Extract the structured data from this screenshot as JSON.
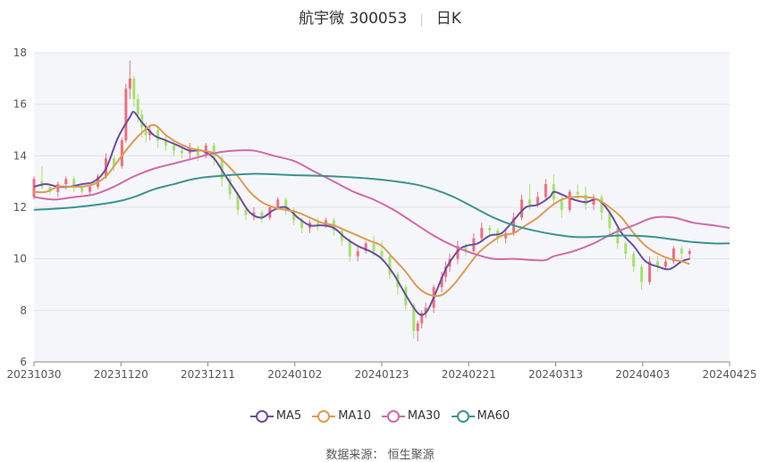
{
  "header": {
    "name": "航宇微 300053",
    "period": "日K"
  },
  "source": {
    "label": "数据来源：",
    "value": "恒生聚源"
  },
  "colors": {
    "up": "#ee6f7c",
    "down": "#a5e26a",
    "ma5": "#6a4e9e",
    "ma10": "#dc9b56",
    "ma30": "#d368ac",
    "ma60": "#3b9492"
  },
  "chart_data": {
    "type": "candlestick",
    "title": "航宇微 300053 日K",
    "ylim": [
      6,
      18
    ],
    "yticks": [
      6,
      8,
      10,
      12,
      14,
      16,
      18
    ],
    "x_tick_labels": [
      "20231030",
      "20231120",
      "20231211",
      "20240102",
      "20240123",
      "20240221",
      "20240313",
      "20240403",
      "20240425"
    ],
    "grid": true,
    "legend_position": "bottom",
    "series": [
      {
        "name": "MA5",
        "color": "#6a4e9e",
        "points": [
          [
            0,
            12.8
          ],
          [
            3,
            12.9
          ],
          [
            6,
            12.8
          ],
          [
            9,
            12.8
          ],
          [
            12,
            12.9
          ],
          [
            15,
            13.0
          ],
          [
            18,
            13.5
          ],
          [
            21,
            14.7
          ],
          [
            24,
            15.5
          ],
          [
            25,
            15.7
          ],
          [
            27,
            15.3
          ],
          [
            30,
            14.8
          ],
          [
            33,
            14.6
          ],
          [
            36,
            14.4
          ],
          [
            39,
            14.2
          ],
          [
            42,
            14.2
          ],
          [
            45,
            13.9
          ],
          [
            48,
            13.2
          ],
          [
            51,
            12.5
          ],
          [
            54,
            11.8
          ],
          [
            57,
            11.6
          ],
          [
            60,
            11.9
          ],
          [
            63,
            12.0
          ],
          [
            66,
            11.6
          ],
          [
            69,
            11.3
          ],
          [
            72,
            11.3
          ],
          [
            75,
            11.2
          ],
          [
            78,
            10.8
          ],
          [
            81,
            10.5
          ],
          [
            84,
            10.3
          ],
          [
            87,
            10.0
          ],
          [
            90,
            9.4
          ],
          [
            93,
            8.6
          ],
          [
            96,
            7.9
          ],
          [
            98,
            7.9
          ],
          [
            100,
            8.5
          ],
          [
            103,
            9.6
          ],
          [
            106,
            10.3
          ],
          [
            108,
            10.5
          ],
          [
            111,
            10.6
          ],
          [
            114,
            10.9
          ],
          [
            117,
            11.0
          ],
          [
            120,
            11.5
          ],
          [
            123,
            12.0
          ],
          [
            126,
            12.1
          ],
          [
            129,
            12.4
          ],
          [
            130,
            12.6
          ],
          [
            132,
            12.5
          ],
          [
            135,
            12.3
          ],
          [
            138,
            12.2
          ],
          [
            141,
            12.3
          ],
          [
            144,
            11.8
          ],
          [
            147,
            11.0
          ],
          [
            150,
            10.5
          ],
          [
            153,
            9.9
          ],
          [
            156,
            9.7
          ],
          [
            159,
            9.6
          ],
          [
            162,
            9.9
          ],
          [
            164,
            10.0
          ]
        ]
      },
      {
        "name": "MA10",
        "color": "#dc9b56",
        "points": [
          [
            0,
            12.6
          ],
          [
            3,
            12.6
          ],
          [
            6,
            12.8
          ],
          [
            9,
            12.8
          ],
          [
            12,
            12.8
          ],
          [
            15,
            12.9
          ],
          [
            18,
            13.2
          ],
          [
            21,
            13.8
          ],
          [
            24,
            14.4
          ],
          [
            27,
            14.9
          ],
          [
            30,
            15.2
          ],
          [
            33,
            14.8
          ],
          [
            36,
            14.5
          ],
          [
            39,
            14.3
          ],
          [
            42,
            14.2
          ],
          [
            45,
            14.1
          ],
          [
            48,
            13.7
          ],
          [
            51,
            13.2
          ],
          [
            54,
            12.6
          ],
          [
            57,
            12.2
          ],
          [
            60,
            12.0
          ],
          [
            63,
            11.9
          ],
          [
            66,
            11.8
          ],
          [
            69,
            11.6
          ],
          [
            72,
            11.4
          ],
          [
            75,
            11.3
          ],
          [
            78,
            11.1
          ],
          [
            81,
            10.9
          ],
          [
            84,
            10.7
          ],
          [
            87,
            10.5
          ],
          [
            90,
            10.0
          ],
          [
            93,
            9.5
          ],
          [
            96,
            8.9
          ],
          [
            99,
            8.6
          ],
          [
            102,
            8.6
          ],
          [
            105,
            9.0
          ],
          [
            108,
            9.6
          ],
          [
            111,
            10.2
          ],
          [
            114,
            10.6
          ],
          [
            117,
            10.9
          ],
          [
            120,
            11.0
          ],
          [
            123,
            11.3
          ],
          [
            126,
            11.6
          ],
          [
            129,
            12.0
          ],
          [
            132,
            12.3
          ],
          [
            135,
            12.4
          ],
          [
            138,
            12.4
          ],
          [
            141,
            12.3
          ],
          [
            144,
            12.0
          ],
          [
            147,
            11.6
          ],
          [
            150,
            11.0
          ],
          [
            153,
            10.5
          ],
          [
            156,
            10.2
          ],
          [
            159,
            10.0
          ],
          [
            162,
            9.9
          ],
          [
            164,
            9.8
          ]
        ]
      },
      {
        "name": "MA30",
        "color": "#d368ac",
        "points": [
          [
            0,
            12.4
          ],
          [
            5,
            12.3
          ],
          [
            10,
            12.4
          ],
          [
            15,
            12.5
          ],
          [
            20,
            12.8
          ],
          [
            25,
            13.2
          ],
          [
            30,
            13.5
          ],
          [
            35,
            13.7
          ],
          [
            40,
            13.9
          ],
          [
            45,
            14.1
          ],
          [
            50,
            14.2
          ],
          [
            55,
            14.2
          ],
          [
            60,
            14.0
          ],
          [
            65,
            13.8
          ],
          [
            70,
            13.4
          ],
          [
            75,
            13.0
          ],
          [
            80,
            12.6
          ],
          [
            85,
            12.3
          ],
          [
            90,
            11.9
          ],
          [
            95,
            11.4
          ],
          [
            100,
            10.9
          ],
          [
            105,
            10.5
          ],
          [
            110,
            10.2
          ],
          [
            115,
            10.0
          ],
          [
            120,
            10.0
          ],
          [
            125,
            9.95
          ],
          [
            128,
            9.95
          ],
          [
            130,
            10.1
          ],
          [
            135,
            10.3
          ],
          [
            140,
            10.6
          ],
          [
            145,
            11.0
          ],
          [
            150,
            11.3
          ],
          [
            155,
            11.6
          ],
          [
            160,
            11.6
          ],
          [
            165,
            11.4
          ],
          [
            170,
            11.3
          ],
          [
            174,
            11.2
          ]
        ]
      },
      {
        "name": "MA60",
        "color": "#3b9492",
        "points": [
          [
            0,
            11.9
          ],
          [
            10,
            12.0
          ],
          [
            20,
            12.2
          ],
          [
            25,
            12.4
          ],
          [
            30,
            12.7
          ],
          [
            35,
            12.9
          ],
          [
            40,
            13.1
          ],
          [
            45,
            13.2
          ],
          [
            55,
            13.3
          ],
          [
            65,
            13.25
          ],
          [
            75,
            13.2
          ],
          [
            85,
            13.1
          ],
          [
            95,
            12.9
          ],
          [
            100,
            12.7
          ],
          [
            105,
            12.4
          ],
          [
            110,
            12.0
          ],
          [
            115,
            11.6
          ],
          [
            120,
            11.3
          ],
          [
            125,
            11.1
          ],
          [
            130,
            10.95
          ],
          [
            135,
            10.85
          ],
          [
            140,
            10.85
          ],
          [
            145,
            10.9
          ],
          [
            150,
            10.9
          ],
          [
            155,
            10.85
          ],
          [
            160,
            10.75
          ],
          [
            165,
            10.65
          ],
          [
            170,
            10.6
          ],
          [
            174,
            10.6
          ]
        ]
      }
    ],
    "candles": [
      [
        0,
        12.4,
        13.1,
        12.3,
        13.2
      ],
      [
        2,
        13.0,
        12.8,
        12.7,
        13.6
      ],
      [
        4,
        12.8,
        12.6,
        12.5,
        12.9
      ],
      [
        6,
        12.6,
        12.9,
        12.4,
        13.0
      ],
      [
        8,
        12.9,
        13.1,
        12.7,
        13.2
      ],
      [
        10,
        13.1,
        12.8,
        12.6,
        13.2
      ],
      [
        12,
        12.8,
        12.6,
        12.5,
        12.9
      ],
      [
        14,
        12.6,
        12.8,
        12.5,
        12.9
      ],
      [
        16,
        12.8,
        13.2,
        12.7,
        13.3
      ],
      [
        18,
        13.2,
        13.9,
        13.1,
        14.1
      ],
      [
        20,
        13.9,
        13.6,
        13.4,
        14.0
      ],
      [
        22,
        13.6,
        14.6,
        13.5,
        14.7
      ],
      [
        23,
        14.6,
        16.6,
        14.5,
        16.8
      ],
      [
        24,
        16.6,
        17.0,
        16.2,
        17.7
      ],
      [
        25,
        17.0,
        16.2,
        15.9,
        17.1
      ],
      [
        26,
        16.2,
        15.6,
        15.3,
        16.4
      ],
      [
        27,
        15.6,
        15.1,
        14.7,
        15.8
      ],
      [
        28,
        15.1,
        14.8,
        14.5,
        15.3
      ],
      [
        29,
        14.8,
        15.0,
        14.6,
        15.2
      ],
      [
        31,
        15.0,
        14.6,
        14.3,
        15.1
      ],
      [
        33,
        14.6,
        14.4,
        14.2,
        14.8
      ],
      [
        35,
        14.4,
        14.2,
        14.0,
        14.6
      ],
      [
        37,
        14.2,
        14.1,
        13.9,
        14.4
      ],
      [
        39,
        14.1,
        14.3,
        13.9,
        14.5
      ],
      [
        41,
        14.3,
        14.0,
        13.8,
        14.4
      ],
      [
        43,
        14.0,
        14.4,
        13.9,
        14.5
      ],
      [
        45,
        14.4,
        13.9,
        13.6,
        14.5
      ],
      [
        47,
        13.9,
        13.1,
        12.8,
        14.0
      ],
      [
        49,
        13.1,
        12.5,
        12.3,
        13.2
      ],
      [
        51,
        12.5,
        11.9,
        11.7,
        12.6
      ],
      [
        53,
        11.9,
        11.7,
        11.5,
        12.0
      ],
      [
        55,
        11.7,
        11.8,
        11.5,
        12.0
      ],
      [
        57,
        11.8,
        11.6,
        11.4,
        11.9
      ],
      [
        59,
        11.6,
        12.0,
        11.5,
        12.1
      ],
      [
        61,
        12.0,
        12.3,
        11.9,
        12.4
      ],
      [
        63,
        12.3,
        11.9,
        11.7,
        12.4
      ],
      [
        65,
        11.9,
        11.5,
        11.3,
        12.0
      ],
      [
        67,
        11.5,
        11.2,
        11.0,
        11.6
      ],
      [
        69,
        11.2,
        11.4,
        11.0,
        11.5
      ],
      [
        71,
        11.4,
        11.3,
        11.1,
        11.6
      ],
      [
        73,
        11.3,
        11.5,
        11.2,
        11.6
      ],
      [
        75,
        11.5,
        11.1,
        10.9,
        11.6
      ],
      [
        77,
        11.1,
        10.7,
        10.5,
        11.2
      ],
      [
        79,
        10.7,
        10.1,
        9.9,
        10.8
      ],
      [
        81,
        10.1,
        10.3,
        9.9,
        10.5
      ],
      [
        83,
        10.3,
        10.6,
        10.2,
        10.7
      ],
      [
        85,
        10.6,
        10.3,
        10.1,
        10.9
      ],
      [
        87,
        10.3,
        10.1,
        9.9,
        10.7
      ],
      [
        89,
        10.1,
        9.4,
        9.2,
        10.2
      ],
      [
        91,
        9.4,
        8.9,
        8.6,
        9.5
      ],
      [
        93,
        8.9,
        8.2,
        8.0,
        9.0
      ],
      [
        95,
        8.2,
        7.2,
        6.9,
        8.3
      ],
      [
        96,
        7.2,
        7.5,
        6.8,
        7.6
      ],
      [
        97,
        7.5,
        7.9,
        7.3,
        8.0
      ],
      [
        98,
        7.9,
        8.1,
        7.7,
        8.3
      ],
      [
        100,
        8.1,
        8.9,
        7.9,
        9.0
      ],
      [
        102,
        8.9,
        9.3,
        8.7,
        9.5
      ],
      [
        103,
        9.3,
        9.7,
        9.1,
        9.9
      ],
      [
        104,
        9.7,
        10.0,
        9.5,
        10.2
      ],
      [
        106,
        10.0,
        10.5,
        9.8,
        10.7
      ],
      [
        108,
        10.5,
        10.3,
        10.1,
        10.6
      ],
      [
        110,
        10.3,
        10.8,
        10.2,
        11.0
      ],
      [
        112,
        10.8,
        11.2,
        10.7,
        11.4
      ],
      [
        114,
        11.2,
        11.1,
        10.9,
        11.3
      ],
      [
        116,
        11.1,
        10.8,
        10.6,
        11.2
      ],
      [
        118,
        10.8,
        11.0,
        10.6,
        11.1
      ],
      [
        120,
        11.0,
        11.6,
        10.9,
        11.8
      ],
      [
        122,
        11.6,
        12.3,
        11.5,
        12.5
      ],
      [
        124,
        12.3,
        12.1,
        11.9,
        12.9
      ],
      [
        126,
        12.1,
        12.4,
        12.0,
        12.6
      ],
      [
        128,
        12.4,
        12.9,
        12.3,
        13.1
      ],
      [
        130,
        12.9,
        12.3,
        12.1,
        13.3
      ],
      [
        132,
        12.3,
        11.9,
        11.6,
        12.5
      ],
      [
        134,
        11.9,
        12.6,
        11.8,
        12.7
      ],
      [
        136,
        12.6,
        12.5,
        12.3,
        12.9
      ],
      [
        138,
        12.5,
        12.1,
        11.9,
        12.8
      ],
      [
        140,
        12.1,
        12.4,
        11.9,
        12.5
      ],
      [
        142,
        12.4,
        11.8,
        11.5,
        12.5
      ],
      [
        144,
        11.8,
        11.2,
        10.9,
        11.9
      ],
      [
        146,
        11.2,
        10.6,
        10.4,
        11.3
      ],
      [
        148,
        10.6,
        10.2,
        10.0,
        10.7
      ],
      [
        150,
        10.2,
        9.7,
        9.5,
        10.3
      ],
      [
        152,
        9.7,
        9.1,
        8.8,
        9.8
      ],
      [
        154,
        9.1,
        9.9,
        9.0,
        10.1
      ],
      [
        156,
        9.9,
        9.7,
        9.5,
        10.1
      ],
      [
        158,
        9.7,
        9.9,
        9.6,
        10.0
      ],
      [
        160,
        9.9,
        10.4,
        9.8,
        10.5
      ],
      [
        162,
        10.4,
        10.2,
        10.0,
        10.5
      ],
      [
        164,
        10.2,
        10.3,
        10.0,
        10.4
      ]
    ]
  }
}
